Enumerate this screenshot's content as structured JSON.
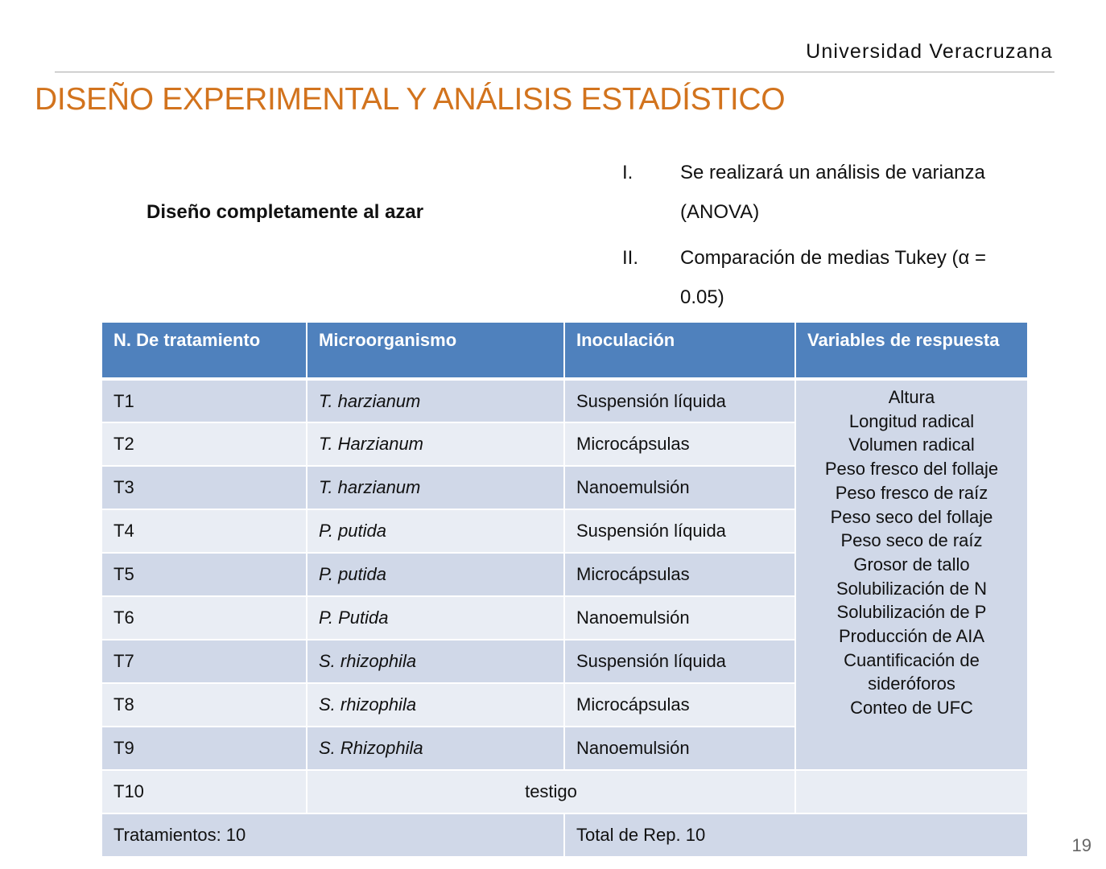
{
  "header": {
    "organization": "Universidad Veracruzana",
    "title": "DISEÑO EXPERIMENTAL Y ANÁLISIS ESTADÍSTICO"
  },
  "design_label": "Diseño completamente al azar",
  "analysis_list": [
    {
      "num": "I.",
      "text": "Se realizará un análisis de varianza (ANOVA)"
    },
    {
      "num": "II.",
      "text": "Comparación de medias Tukey (α = 0.05)"
    }
  ],
  "table": {
    "headers": [
      "N. De tratamiento",
      "Microorganismo",
      "Inoculación",
      "Variables de respuesta"
    ],
    "rows": [
      {
        "id": "T1",
        "micro": "T. harzianum",
        "inoc": "Suspensión líquida"
      },
      {
        "id": "T2",
        "micro": "T. Harzianum",
        "inoc": "Microcápsulas"
      },
      {
        "id": "T3",
        "micro": "T. harzianum",
        "inoc": "Nanoemulsión"
      },
      {
        "id": "T4",
        "micro": "P. putida",
        "inoc": "Suspensión líquida"
      },
      {
        "id": "T5",
        "micro": "P. putida",
        "inoc": "Microcápsulas"
      },
      {
        "id": "T6",
        "micro": "P. Putida",
        "inoc": "Nanoemulsión"
      },
      {
        "id": "T7",
        "micro": "S. rhizophila",
        "inoc": "Suspensión líquida"
      },
      {
        "id": "T8",
        "micro": "S. rhizophila",
        "inoc": "Microcápsulas"
      },
      {
        "id": "T9",
        "micro": "S. Rhizophila",
        "inoc": "Nanoemulsión"
      }
    ],
    "response_variables": [
      "Altura",
      "Longitud radical",
      "Volumen radical",
      "Peso fresco del follaje",
      "Peso fresco de raíz",
      "Peso seco del follaje",
      "Peso seco de raíz",
      "Grosor de tallo",
      "Solubilización de N",
      "Solubilización de P",
      "Producción de AIA",
      "Cuantificación de",
      "sideróforos",
      "Conteo de UFC"
    ],
    "control_row": {
      "id": "T10",
      "label": "testigo"
    },
    "footer": {
      "treatments": "Tratamientos: 10",
      "reps": "Total de Rep. 10"
    }
  },
  "page_number": "19",
  "colors": {
    "title": "#d2731d",
    "header_bg": "#4f81bd",
    "row_dark": "#d0d8e8",
    "row_light": "#e9edf4"
  }
}
